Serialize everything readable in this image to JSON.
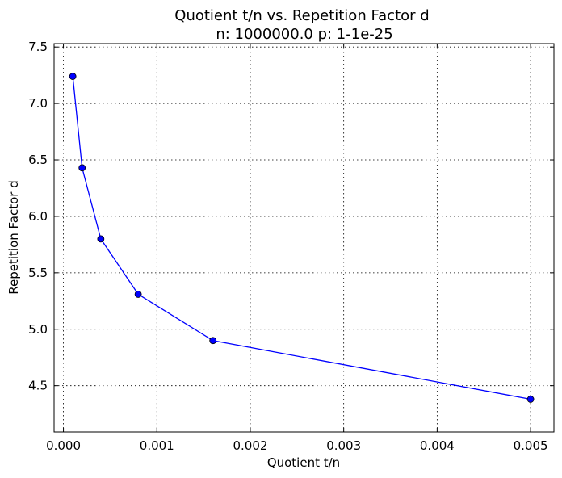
{
  "chart_data": {
    "type": "line",
    "title": "Quotient t/n vs. Repetition Factor d",
    "subtitle": "n: 1000000.0 p: 1-1e-25",
    "xlabel": "Quotient t/n",
    "ylabel": "Repetition Factor d",
    "xlim": [
      -0.0001,
      0.00525
    ],
    "ylim": [
      4.09,
      7.53
    ],
    "xticks": [
      0.0,
      0.001,
      0.002,
      0.003,
      0.004,
      0.005
    ],
    "xtick_labels": [
      "0.000",
      "0.001",
      "0.002",
      "0.003",
      "0.004",
      "0.005"
    ],
    "yticks": [
      4.5,
      5.0,
      5.5,
      6.0,
      6.5,
      7.0,
      7.5
    ],
    "ytick_labels": [
      "4.5",
      "5.0",
      "5.5",
      "6.0",
      "6.5",
      "7.0",
      "7.5"
    ],
    "grid": true,
    "series": [
      {
        "x": [
          0.0001,
          0.0002,
          0.0004,
          0.0008,
          0.0016,
          0.005
        ],
        "y": [
          7.24,
          6.43,
          5.8,
          5.31,
          4.9,
          4.38
        ],
        "color": "#0000ff",
        "marker": "circle"
      }
    ]
  }
}
